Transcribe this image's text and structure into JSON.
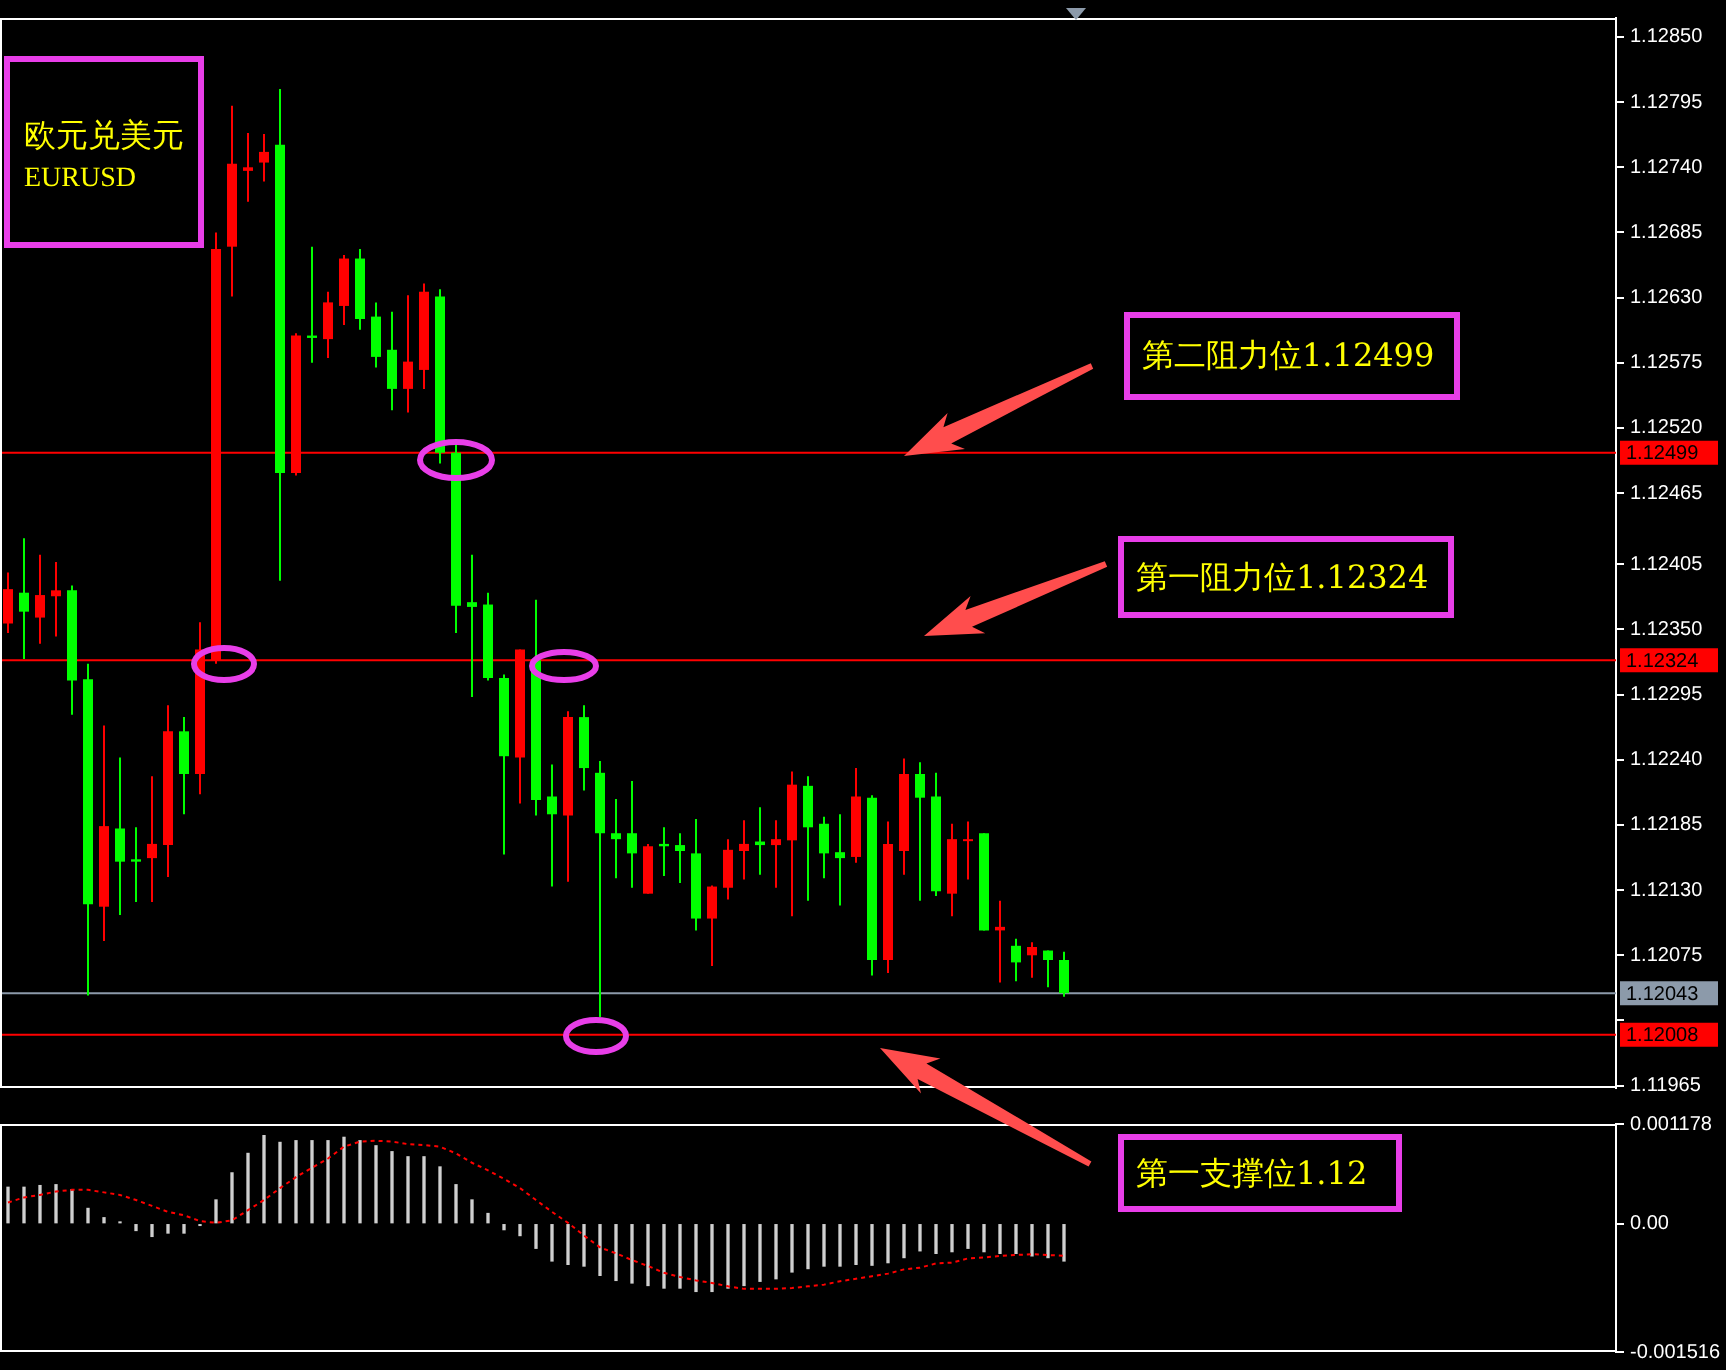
{
  "chart_data": [
    {
      "type": "candlestick",
      "title": "欧元兑美元",
      "subtitle": "EURUSD",
      "annotations": [
        "第二阻力位1.12499",
        "第一阻力位1.12324",
        "第一支撑位1.12"
      ],
      "categories": [
        null,
        null,
        null,
        null,
        null,
        null,
        null,
        null,
        null,
        null,
        null,
        null,
        null,
        null,
        null,
        null,
        null,
        null,
        null,
        null,
        null,
        null,
        null,
        null,
        null,
        null,
        null,
        null,
        null,
        null,
        null,
        null,
        null,
        null,
        null,
        null,
        null,
        null,
        null,
        null,
        null,
        null,
        null,
        null,
        null,
        null,
        null,
        null,
        null,
        null,
        null,
        null,
        null,
        null,
        null,
        null,
        null,
        null,
        null,
        null,
        null,
        null,
        null,
        null,
        null,
        null,
        null,
        null,
        null,
        null,
        null,
        null,
        null,
        null,
        null,
        null,
        null,
        null,
        null,
        null,
        null,
        null,
        null,
        null,
        null,
        null,
        null,
        null,
        null,
        null,
        null,
        null,
        null,
        null,
        null,
        null,
        null,
        null,
        null,
        null,
        null
      ],
      "ohlc": [
        [
          1.12355,
          1.12398,
          1.12347,
          1.12384
        ],
        [
          1.12381,
          1.12427,
          1.12325,
          1.12365
        ],
        [
          1.1236,
          1.12413,
          1.12338,
          1.12379
        ],
        [
          1.12378,
          1.12407,
          1.12344,
          1.12383
        ],
        [
          1.12383,
          1.12387,
          1.12278,
          1.12307
        ],
        [
          1.12308,
          1.12321,
          1.12041,
          1.12118
        ],
        [
          1.12116,
          1.12269,
          1.12087,
          1.12184
        ],
        [
          1.12182,
          1.12242,
          1.12109,
          1.12154
        ],
        [
          1.12156,
          1.12183,
          1.1212,
          1.12154
        ],
        [
          1.12157,
          1.12226,
          1.1212,
          1.12169
        ],
        [
          1.12168,
          1.12286,
          1.12141,
          1.12264
        ],
        [
          1.12264,
          1.12276,
          1.12194,
          1.12228
        ],
        [
          1.12228,
          1.12356,
          1.12211,
          1.12333
        ],
        [
          1.12324,
          1.12685,
          1.12321,
          1.12671
        ],
        [
          1.12673,
          1.12792,
          1.12631,
          1.12743
        ],
        [
          1.12737,
          1.12769,
          1.12711,
          1.1274
        ],
        [
          1.12744,
          1.12768,
          1.12728,
          1.12753
        ],
        [
          1.12759,
          1.12806,
          1.12391,
          1.12482
        ],
        [
          1.12482,
          1.126,
          1.1248,
          1.12598
        ],
        [
          1.12598,
          1.12673,
          1.12575,
          1.12596
        ],
        [
          1.12595,
          1.12635,
          1.12579,
          1.12626
        ],
        [
          1.12623,
          1.12666,
          1.12607,
          1.12663
        ],
        [
          1.12663,
          1.12671,
          1.12603,
          1.12612
        ],
        [
          1.12614,
          1.12626,
          1.12571,
          1.1258
        ],
        [
          1.12586,
          1.12618,
          1.12535,
          1.12553
        ],
        [
          1.12553,
          1.12632,
          1.12533,
          1.12576
        ],
        [
          1.12569,
          1.12642,
          1.12553,
          1.12635
        ],
        [
          1.12631,
          1.12637,
          1.1249,
          1.12499
        ],
        [
          1.12499,
          1.12508,
          1.12347,
          1.1237
        ],
        [
          1.12373,
          1.12413,
          1.12293,
          1.12369
        ],
        [
          1.12371,
          1.12381,
          1.12307,
          1.12309
        ],
        [
          1.12309,
          1.12312,
          1.1216,
          1.12243
        ],
        [
          1.12242,
          1.12333,
          1.12203,
          1.12333
        ],
        [
          1.12324,
          1.12375,
          1.12193,
          1.12206
        ],
        [
          1.12209,
          1.12236,
          1.12133,
          1.12194
        ],
        [
          1.12193,
          1.12281,
          1.12137,
          1.12276
        ],
        [
          1.12276,
          1.12286,
          1.12214,
          1.12233
        ],
        [
          1.12229,
          1.12239,
          1.12023,
          1.12178
        ],
        [
          1.12178,
          1.12207,
          1.1214,
          1.12173
        ],
        [
          1.12178,
          1.12222,
          1.12132,
          1.12161
        ],
        [
          1.12127,
          1.12169,
          1.12127,
          1.12167
        ],
        [
          1.12169,
          1.12183,
          1.12142,
          1.12167
        ],
        [
          1.12168,
          1.12178,
          1.12136,
          1.12163
        ],
        [
          1.12161,
          1.1219,
          1.12096,
          1.12106
        ],
        [
          1.12106,
          1.12134,
          1.12066,
          1.12133
        ],
        [
          1.12132,
          1.12173,
          1.12122,
          1.12164
        ],
        [
          1.12163,
          1.12189,
          1.12139,
          1.12169
        ],
        [
          1.12171,
          1.122,
          1.12143,
          1.12168
        ],
        [
          1.12168,
          1.12189,
          1.12132,
          1.12173
        ],
        [
          1.12172,
          1.1223,
          1.12108,
          1.12219
        ],
        [
          1.12218,
          1.12226,
          1.12121,
          1.12183
        ],
        [
          1.12186,
          1.12192,
          1.1214,
          1.12161
        ],
        [
          1.12162,
          1.12194,
          1.12117,
          1.12157
        ],
        [
          1.12158,
          1.12233,
          1.12153,
          1.12209
        ],
        [
          1.12208,
          1.1221,
          1.12058,
          1.12071
        ],
        [
          1.12071,
          1.12188,
          1.1206,
          1.12169
        ],
        [
          1.12163,
          1.12241,
          1.12143,
          1.12228
        ],
        [
          1.12228,
          1.12238,
          1.12121,
          1.12208
        ],
        [
          1.12209,
          1.12229,
          1.12125,
          1.12129
        ],
        [
          1.12127,
          1.12186,
          1.12108,
          1.12173
        ],
        [
          1.12172,
          1.12188,
          1.12139,
          1.12173
        ],
        [
          1.12178,
          1.12178,
          1.12096,
          1.12096
        ],
        [
          1.12096,
          1.12121,
          1.12052,
          1.12099
        ],
        [
          1.12083,
          1.12089,
          1.12053,
          1.12069
        ],
        [
          1.12075,
          1.12086,
          1.12056,
          1.12082
        ],
        [
          1.12079,
          1.12079,
          1.12048,
          1.12071
        ],
        [
          1.12071,
          1.12078,
          1.1204,
          1.12043
        ],
        null,
        null,
        null,
        null,
        null,
        null,
        null,
        null,
        null,
        null,
        null,
        null,
        null,
        null,
        null,
        null,
        null,
        null,
        null,
        null,
        null,
        null,
        null,
        null,
        null,
        null,
        null,
        null,
        null,
        null,
        null,
        null,
        null,
        null
      ],
      "colors": [
        "#ff0000",
        "#00ff00",
        "#ff0000",
        "#ff0000",
        "#00ff00",
        "#00ff00",
        "#ff0000",
        "#00ff00",
        "#00ff00",
        "#ff0000",
        "#ff0000",
        "#00ff00",
        "#ff0000",
        "#ff0000",
        "#ff0000",
        "#ff0000",
        "#ff0000",
        "#00ff00",
        "#ff0000",
        "#00ff00",
        "#ff0000",
        "#ff0000",
        "#00ff00",
        "#00ff00",
        "#00ff00",
        "#ff0000",
        "#ff0000",
        "#00ff00",
        "#00ff00",
        "#00ff00",
        "#00ff00",
        "#00ff00",
        "#ff0000",
        "#00ff00",
        "#00ff00",
        "#ff0000",
        "#00ff00",
        "#00ff00",
        "#00ff00",
        "#00ff00",
        "#ff0000",
        "#00ff00",
        "#00ff00",
        "#00ff00",
        "#ff0000",
        "#ff0000",
        "#ff0000",
        "#00ff00",
        "#ff0000",
        "#ff0000",
        "#00ff00",
        "#00ff00",
        "#00ff00",
        "#ff0000",
        "#00ff00",
        "#ff0000",
        "#ff0000",
        "#00ff00",
        "#00ff00",
        "#ff0000",
        "#ff0000",
        "#00ff00",
        "#ff0000",
        "#00ff00",
        "#ff0000",
        "#00ff00",
        "#00ff00",
        null,
        null,
        null,
        null,
        null,
        null,
        null,
        null,
        null,
        null,
        null,
        null,
        null,
        null,
        null,
        null,
        null,
        null,
        null,
        null,
        null,
        null,
        null,
        null,
        null,
        null,
        null,
        null,
        null,
        null,
        null,
        null,
        null,
        null
      ],
      "ylim": [
        1.11963,
        1.12866
      ],
      "yticks": [
        {
          "value": 1.1285,
          "label": "1.12850"
        },
        1.12795,
        {
          "value": 1.1274,
          "label": "1.12740"
        },
        1.12685,
        {
          "value": 1.1263,
          "label": "1.12630"
        },
        1.12575,
        {
          "value": 1.1252,
          "label": "1.12520"
        },
        1.12465,
        1.12405,
        {
          "value": 1.1235,
          "label": "1.12350"
        },
        1.12295,
        {
          "value": 1.1224,
          "label": "1.12240"
        },
        1.12185,
        {
          "value": 1.1213,
          "label": "1.12130"
        },
        1.12075,
        {
          "value": 1.1202,
          "label": null
        },
        1.11965
      ],
      "ref_lines": [
        {
          "axis": "y",
          "value": 1.12499,
          "label": "1.12499",
          "color": "#ff0000"
        },
        {
          "axis": "y",
          "value": 1.12324,
          "label": "1.12324",
          "color": "#ff0000"
        },
        {
          "axis": "y",
          "value": 1.12043,
          "label": "1.12043",
          "color": "#8c9aaa"
        },
        {
          "axis": "y",
          "value": 1.12008,
          "label": "1.12008",
          "color": "#ff0000"
        }
      ],
      "tick_labels": "y"
    },
    {
      "type": "bar",
      "categories": [
        null,
        null,
        null,
        null,
        null,
        null,
        null,
        null,
        null,
        null,
        null,
        null,
        null,
        null,
        null,
        null,
        null,
        null,
        null,
        null,
        null,
        null,
        null,
        null,
        null,
        null,
        null,
        null,
        null,
        null,
        null,
        null,
        null,
        null,
        null,
        null,
        null,
        null,
        null,
        null,
        null,
        null,
        null,
        null,
        null,
        null,
        null,
        null,
        null,
        null,
        null,
        null,
        null,
        null,
        null,
        null,
        null,
        null,
        null,
        null,
        null,
        null,
        null,
        null,
        null,
        null,
        null,
        null,
        null,
        null,
        null,
        null,
        null,
        null,
        null,
        null,
        null,
        null,
        null,
        null,
        null,
        null,
        null,
        null,
        null,
        null,
        null,
        null,
        null,
        null,
        null,
        null,
        null,
        null,
        null,
        null,
        null,
        null,
        null,
        null,
        null
      ],
      "series": [
        {
          "type": "bar",
          "color": "#d0d0d0",
          "values": [
            0.00043,
            0.00043,
            0.00045,
            0.00046,
            0.0004,
            0.00018,
            7e-05,
            2e-05,
            -8e-05,
            -0.00015,
            -0.00011,
            -0.00011,
            -2e-05,
            0.00028,
            0.0006,
            0.00083,
            0.00104,
            0.00096,
            0.00098,
            0.00098,
            0.00098,
            0.00102,
            0.00098,
            0.00092,
            0.00085,
            0.00079,
            0.00079,
            0.00067,
            0.00046,
            0.00028,
            0.00012,
            -7e-05,
            -0.00014,
            -0.00029,
            -0.00044,
            -0.00048,
            -0.0005,
            -0.00061,
            -0.00067,
            -0.0007,
            -0.00073,
            -0.00076,
            -0.00076,
            -0.0008,
            -0.0008,
            -0.00076,
            -0.00073,
            -0.00068,
            -0.00065,
            -0.00057,
            -0.00053,
            -0.0005,
            -0.0005,
            -0.00048,
            -0.00049,
            -0.00046,
            -0.0004,
            -0.00032,
            -0.00035,
            -0.00033,
            -0.00029,
            -0.00033,
            -0.00035,
            -0.00035,
            -0.00038,
            -0.0004,
            -0.00044,
            null,
            null,
            null,
            null,
            null,
            null,
            null,
            null,
            null,
            null,
            null,
            null,
            null,
            null,
            null,
            null,
            null,
            null,
            null,
            null,
            null,
            null,
            null,
            null,
            null,
            null,
            null,
            null,
            null,
            null,
            null,
            null,
            null,
            null
          ]
        },
        {
          "type": "line",
          "color": "#ff0000",
          "line_style": "dotted",
          "values": [
            0.00025,
            0.00031,
            0.00034,
            0.00038,
            0.0004,
            0.0004,
            0.00037,
            0.00034,
            0.00028,
            0.00021,
            0.00014,
            0.0001,
            3e-05,
            1e-05,
            4e-05,
            0.00016,
            0.00028,
            0.00042,
            0.00055,
            0.00066,
            0.00077,
            0.00091,
            0.00097,
            0.00098,
            0.00097,
            0.00094,
            0.00093,
            0.00091,
            0.00083,
            0.00072,
            0.00063,
            0.00053,
            0.00042,
            0.00028,
            0.00014,
            1e-05,
            -0.00014,
            -0.00028,
            -0.00035,
            -0.00043,
            -0.0005,
            -0.00058,
            -0.00063,
            -0.00067,
            -0.0007,
            -0.00074,
            -0.00077,
            -0.00077,
            -0.00077,
            -0.00076,
            -0.00074,
            -0.00072,
            -0.00068,
            -0.00065,
            -0.00062,
            -0.00059,
            -0.00054,
            -0.00052,
            -0.00047,
            -0.00046,
            -0.00041,
            -0.0004,
            -0.00038,
            -0.00037,
            -0.00036,
            -0.00037,
            -0.00038,
            null,
            null,
            null,
            null,
            null,
            null,
            null,
            null,
            null,
            null,
            null,
            null,
            null,
            null,
            null,
            null,
            null,
            null,
            null,
            null,
            null,
            null,
            null,
            null,
            null,
            null,
            null,
            null,
            null,
            null,
            null,
            null,
            null,
            null
          ]
        }
      ],
      "ylim": [
        -0.001516,
        0.001178
      ],
      "yticks": [
        0.001178,
        {
          "value": 0,
          "label": "0.00"
        },
        -0.001516
      ],
      "tick_labels": "y"
    }
  ]
}
